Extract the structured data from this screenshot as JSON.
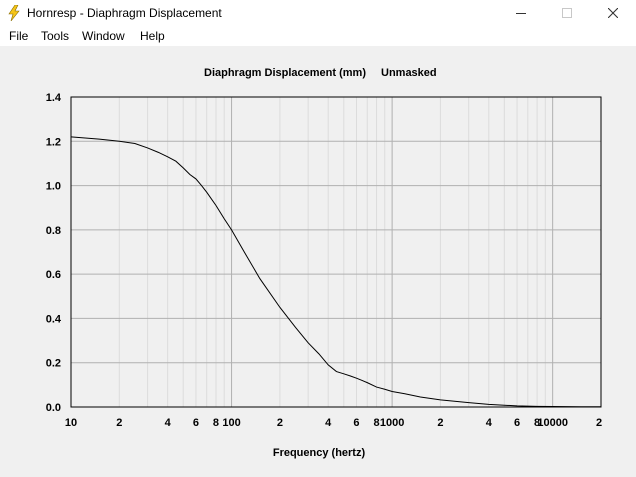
{
  "window": {
    "title": "Hornresp - Diaphragm Displacement",
    "app_icon": "lightning-bolt-icon",
    "controls": [
      "minimize-icon",
      "maximize-icon",
      "close-icon"
    ]
  },
  "menu": {
    "items": [
      "File",
      "Tools",
      "Window",
      "Help"
    ]
  },
  "chart_data": {
    "type": "line",
    "title": "Diaphragm Displacement (mm)",
    "title_note": "Unmasked",
    "xlabel": "Frequency (hertz)",
    "ylabel": "",
    "x_scale": "log",
    "xlim": [
      10,
      20000
    ],
    "ylim": [
      0,
      1.4
    ],
    "grid": true,
    "x_tick_labels": [
      {
        "value": 10,
        "label": "10"
      },
      {
        "value": 20,
        "label": "2"
      },
      {
        "value": 40,
        "label": "4"
      },
      {
        "value": 60,
        "label": "6"
      },
      {
        "value": 80,
        "label": "8"
      },
      {
        "value": 100,
        "label": "100"
      },
      {
        "value": 200,
        "label": "2"
      },
      {
        "value": 400,
        "label": "4"
      },
      {
        "value": 600,
        "label": "6"
      },
      {
        "value": 800,
        "label": "8"
      },
      {
        "value": 1000,
        "label": "1000"
      },
      {
        "value": 2000,
        "label": "2"
      },
      {
        "value": 4000,
        "label": "4"
      },
      {
        "value": 6000,
        "label": "6"
      },
      {
        "value": 8000,
        "label": "8"
      },
      {
        "value": 10000,
        "label": "10000"
      },
      {
        "value": 20000,
        "label": "2"
      }
    ],
    "y_ticks": [
      "0.0",
      "0.2",
      "0.4",
      "0.6",
      "0.8",
      "1.0",
      "1.2",
      "1.4"
    ],
    "series": [
      {
        "x": [
          10,
          15,
          20,
          25,
          30,
          35,
          40,
          45,
          50,
          55,
          60,
          65,
          70,
          80,
          90,
          100,
          120,
          150,
          200,
          250,
          300,
          350,
          400,
          450,
          500,
          550,
          600,
          650,
          700,
          800,
          900,
          1000,
          1200,
          1500,
          2000,
          3000,
          4000,
          5000,
          6000,
          8000,
          10000,
          15000,
          20000
        ],
        "y": [
          1.22,
          1.21,
          1.2,
          1.19,
          1.17,
          1.15,
          1.13,
          1.11,
          1.08,
          1.05,
          1.03,
          1.0,
          0.97,
          0.91,
          0.85,
          0.8,
          0.7,
          0.58,
          0.45,
          0.36,
          0.29,
          0.24,
          0.19,
          0.16,
          0.15,
          0.14,
          0.13,
          0.12,
          0.11,
          0.09,
          0.08,
          0.07,
          0.06,
          0.045,
          0.032,
          0.02,
          0.012,
          0.008,
          0.005,
          0.003,
          0.002,
          0.001,
          0.001
        ]
      }
    ]
  }
}
